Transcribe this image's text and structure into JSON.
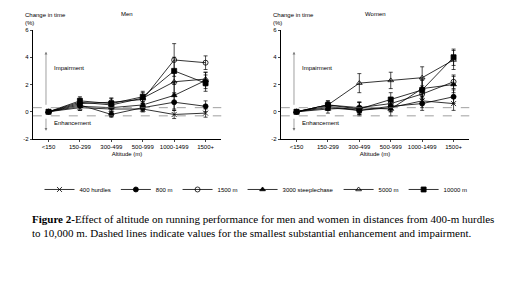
{
  "chart_data": [
    {
      "type": "line",
      "title": "Men",
      "x_label": "Altitude (m)",
      "y_label": "Change in time\n(%)",
      "categories": [
        "<150",
        "150-299",
        "300-499",
        "500-999",
        "1000-1499",
        "1500+"
      ],
      "ylim": [
        -2,
        6
      ],
      "yticks": [
        -2,
        0,
        2,
        4,
        6
      ],
      "legend": "bottom",
      "annotations": [
        "Impairment",
        "Enhancement"
      ],
      "thresholds": [
        -0.3,
        0.3
      ],
      "series": [
        {
          "name": "400 hurdles",
          "color": "#000000",
          "marker": "x",
          "line_style": "solid",
          "values": [
            0,
            0.3,
            0.2,
            0.2,
            -0.2,
            -0.1
          ],
          "errors": [
            0,
            0.2,
            0.2,
            0.2,
            0.3,
            0.3
          ]
        },
        {
          "name": "800 m",
          "color": "#000000",
          "marker": "circle",
          "line_style": "solid",
          "values": [
            0,
            0.5,
            -0.2,
            0.3,
            0.7,
            0.4
          ],
          "errors": [
            0,
            0.2,
            0.2,
            0.3,
            0.6,
            0.4
          ]
        },
        {
          "name": "1500 m",
          "color": "#000000",
          "marker": "circle-open",
          "line_style": "solid",
          "values": [
            0,
            0.6,
            0.7,
            0.9,
            3.8,
            3.6
          ],
          "errors": [
            0,
            0.2,
            0.3,
            0.3,
            1.2,
            0.5
          ]
        },
        {
          "name": "3000 steeplechase",
          "color": "#000000",
          "marker": "triangle",
          "line_style": "solid",
          "values": [
            0,
            0.4,
            0.3,
            0.5,
            1.2,
            2.3
          ],
          "errors": [
            0,
            0.3,
            0.3,
            0.4,
            1.0,
            0.6
          ]
        },
        {
          "name": "5000 m",
          "color": "#000000",
          "marker": "triangle-open",
          "line_style": "solid",
          "values": [
            0,
            0.7,
            0.5,
            1.0,
            2.2,
            2.4
          ],
          "errors": [
            0,
            0.3,
            0.3,
            0.4,
            0.8,
            0.5
          ]
        },
        {
          "name": "10000 m",
          "color": "#000000",
          "marker": "square",
          "line_style": "solid",
          "values": [
            0,
            0.8,
            0.6,
            1.1,
            3.0,
            2.1
          ],
          "errors": [
            0,
            0.3,
            0.4,
            0.4,
            1.0,
            0.6
          ]
        }
      ]
    },
    {
      "type": "line",
      "title": "Women",
      "x_label": "Altitude (m)",
      "y_label": "Change in time\n(%)",
      "categories": [
        "<150",
        "150-299",
        "300-499",
        "500-999",
        "1000-1499",
        "1500+"
      ],
      "ylim": [
        -2,
        6
      ],
      "yticks": [
        -2,
        0,
        2,
        4,
        6
      ],
      "legend": "bottom",
      "annotations": [
        "Impairment",
        "Enhancement"
      ],
      "thresholds": [
        -0.3,
        0.3
      ],
      "series": [
        {
          "name": "400 hurdles",
          "color": "#000000",
          "marker": "x",
          "line_style": "solid",
          "values": [
            0,
            0.4,
            0.1,
            0.3,
            0.8,
            0.6
          ],
          "errors": [
            0,
            0.3,
            0.3,
            0.3,
            0.5,
            0.5
          ]
        },
        {
          "name": "800 m",
          "color": "#000000",
          "marker": "circle",
          "line_style": "solid",
          "values": [
            0,
            0.3,
            0.1,
            0.4,
            0.6,
            1.1
          ],
          "errors": [
            0,
            0.2,
            0.3,
            0.4,
            0.5,
            0.5
          ]
        },
        {
          "name": "1500 m",
          "color": "#000000",
          "marker": "circle-open",
          "line_style": "solid",
          "values": [
            0,
            0.5,
            0.3,
            0.6,
            1.3,
            2.2
          ],
          "errors": [
            0,
            0.2,
            0.4,
            0.4,
            0.6,
            0.5
          ]
        },
        {
          "name": "3000 steeplechase",
          "color": "#000000",
          "marker": "triangle",
          "line_style": "solid",
          "values": [
            0,
            0.2,
            0.3,
            0.2,
            1.7,
            2.0
          ],
          "errors": [
            0,
            0.3,
            0.4,
            0.5,
            0.7,
            0.6
          ]
        },
        {
          "name": "5000 m",
          "color": "#000000",
          "marker": "triangle-open",
          "line_style": "solid",
          "values": [
            0,
            0.5,
            2.1,
            2.3,
            2.5,
            3.8
          ],
          "errors": [
            0,
            0.3,
            0.7,
            0.6,
            0.8,
            0.7
          ]
        },
        {
          "name": "10000 m",
          "color": "#000000",
          "marker": "square",
          "line_style": "solid",
          "values": [
            0,
            0.5,
            0.2,
            0.9,
            1.6,
            4.0
          ],
          "errors": [
            0,
            0.3,
            0.5,
            0.5,
            0.7,
            0.6
          ]
        }
      ]
    }
  ],
  "caption": {
    "label": "Figure 2-",
    "text": "Effect of altitude on running performance for men and women in distances from 400-m hurdles to 10,000 m. Dashed lines indicate values for the smallest substantial enhancement and impairment."
  }
}
